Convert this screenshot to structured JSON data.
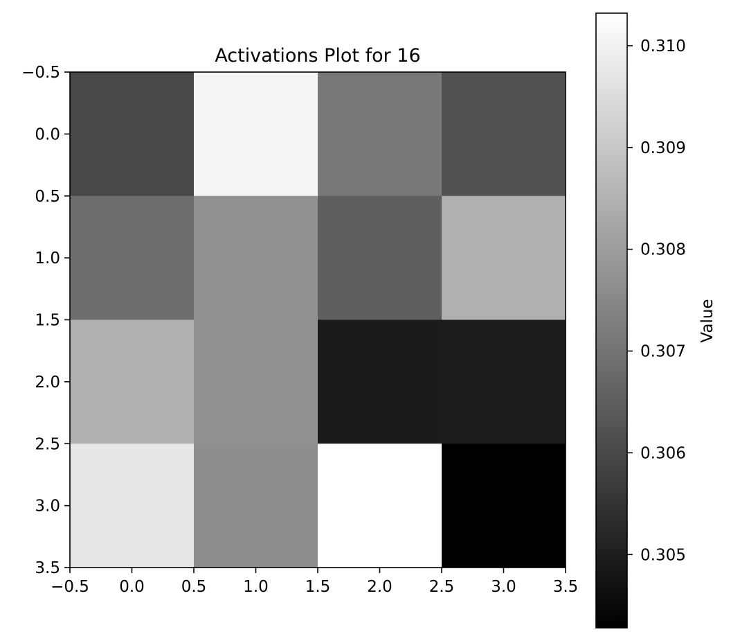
{
  "chart_data": {
    "type": "heatmap",
    "title": "Activations Plot for 16",
    "colormap": "gray",
    "rows": 4,
    "cols": 4,
    "values": [
      [
        0.30598,
        0.31006,
        0.30712,
        0.30619
      ],
      [
        0.30687,
        0.30769,
        0.30652,
        0.30846
      ],
      [
        0.30846,
        0.30769,
        0.30492,
        0.30496
      ],
      [
        0.30975,
        0.30761,
        0.31032,
        0.30428
      ]
    ],
    "vmin": 0.30428,
    "vmax": 0.31032,
    "xlim": [
      -0.5,
      3.5
    ],
    "ylim": [
      3.5,
      -0.5
    ],
    "xticks": [
      -0.5,
      0.0,
      0.5,
      1.0,
      1.5,
      2.0,
      2.5,
      3.0,
      3.5
    ],
    "xtick_labels": [
      "−0.5",
      "0.0",
      "0.5",
      "1.0",
      "1.5",
      "2.0",
      "2.5",
      "3.0",
      "3.5"
    ],
    "yticks": [
      -0.5,
      0.0,
      0.5,
      1.0,
      1.5,
      2.0,
      2.5,
      3.0,
      3.5
    ],
    "ytick_labels": [
      "−0.5",
      "0.0",
      "0.5",
      "1.0",
      "1.5",
      "2.0",
      "2.5",
      "3.0",
      "3.5"
    ],
    "colorbar": {
      "label": "Value",
      "ticks": [
        0.305,
        0.306,
        0.307,
        0.308,
        0.309,
        0.31
      ],
      "tick_labels": [
        "0.305",
        "0.306",
        "0.307",
        "0.308",
        "0.309",
        "0.310"
      ]
    }
  }
}
